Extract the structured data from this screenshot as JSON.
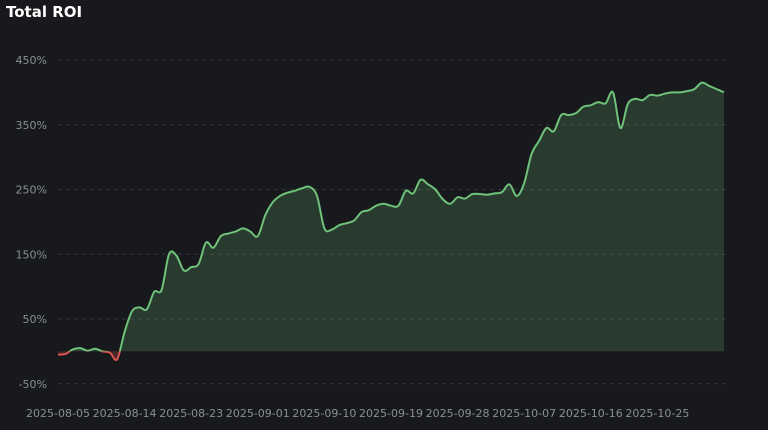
{
  "page": {
    "title": "Total ROI"
  },
  "colors": {
    "background": "#18191d",
    "positive": "#6fc27a",
    "negative": "#d9534f",
    "grid": "#34363c",
    "axis_text": "#8b8e96"
  },
  "chart_data": {
    "type": "area",
    "title": "Total ROI",
    "xlabel": "",
    "ylabel": "",
    "ylim": [
      -60,
      470
    ],
    "y_ticks": [
      "450%",
      "350%",
      "250%",
      "150%",
      "50%",
      "-50%"
    ],
    "y_tick_values": [
      450,
      350,
      250,
      150,
      50,
      -50
    ],
    "x_ticks": [
      "2025-08-05",
      "2025-08-14",
      "2025-08-23",
      "2025-09-01",
      "2025-09-10",
      "2025-09-19",
      "2025-09-28",
      "2025-10-07",
      "2025-10-16",
      "2025-10-25"
    ],
    "grid": true,
    "legend": "none",
    "unit": "%",
    "series": [
      {
        "x": [
          "2025-08-05",
          "2025-08-06",
          "2025-08-07",
          "2025-08-08",
          "2025-08-09",
          "2025-08-10",
          "2025-08-11",
          "2025-08-12",
          "2025-08-13",
          "2025-08-14",
          "2025-08-15",
          "2025-08-16",
          "2025-08-17",
          "2025-08-18",
          "2025-08-19",
          "2025-08-20",
          "2025-08-21",
          "2025-08-22",
          "2025-08-23",
          "2025-08-24",
          "2025-08-25",
          "2025-08-26",
          "2025-08-27",
          "2025-08-28",
          "2025-08-29",
          "2025-08-30",
          "2025-08-31",
          "2025-09-01",
          "2025-09-02",
          "2025-09-03",
          "2025-09-04",
          "2025-09-05",
          "2025-09-06",
          "2025-09-07",
          "2025-09-08",
          "2025-09-09",
          "2025-09-10",
          "2025-09-11",
          "2025-09-12",
          "2025-09-13",
          "2025-09-14",
          "2025-09-15",
          "2025-09-16",
          "2025-09-17",
          "2025-09-18",
          "2025-09-19",
          "2025-09-20",
          "2025-09-21",
          "2025-09-22",
          "2025-09-23",
          "2025-09-24",
          "2025-09-25",
          "2025-09-26",
          "2025-09-27",
          "2025-09-28",
          "2025-09-29",
          "2025-09-30",
          "2025-10-01",
          "2025-10-02",
          "2025-10-03",
          "2025-10-04",
          "2025-10-05",
          "2025-10-06",
          "2025-10-07",
          "2025-10-08",
          "2025-10-09",
          "2025-10-10",
          "2025-10-11",
          "2025-10-12",
          "2025-10-13",
          "2025-10-14",
          "2025-10-15",
          "2025-10-16",
          "2025-10-17",
          "2025-10-18",
          "2025-10-19",
          "2025-10-20",
          "2025-10-21",
          "2025-10-22",
          "2025-10-23",
          "2025-10-24",
          "2025-10-25",
          "2025-10-26",
          "2025-10-27",
          "2025-10-28",
          "2025-10-29",
          "2025-10-30",
          "2025-10-31",
          "2025-11-01",
          "2025-11-02",
          "2025-11-03"
        ],
        "values": [
          -5,
          -4,
          3,
          5,
          1,
          4,
          0,
          -2,
          -12,
          30,
          62,
          68,
          65,
          92,
          95,
          150,
          148,
          125,
          130,
          135,
          168,
          160,
          178,
          182,
          185,
          190,
          185,
          178,
          210,
          230,
          240,
          245,
          248,
          252,
          254,
          240,
          190,
          188,
          195,
          198,
          202,
          215,
          218,
          225,
          228,
          225,
          225,
          248,
          244,
          265,
          258,
          250,
          235,
          228,
          238,
          236,
          243,
          243,
          242,
          244,
          246,
          258,
          240,
          260,
          305,
          325,
          345,
          340,
          365,
          365,
          368,
          378,
          380,
          385,
          383,
          400,
          345,
          382,
          390,
          388,
          396,
          395,
          398,
          400,
          400,
          402,
          405,
          415,
          410,
          405,
          400
        ]
      }
    ]
  }
}
